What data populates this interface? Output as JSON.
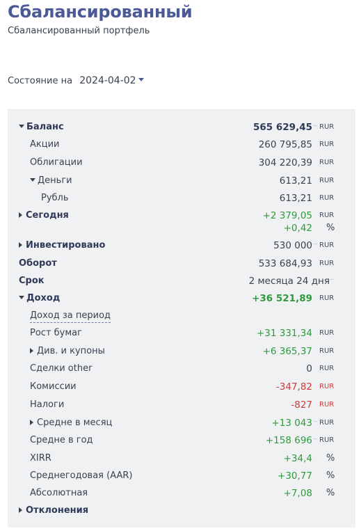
{
  "header": {
    "title": "Сбалансированный",
    "subtitle": "Сбалансированный портфель"
  },
  "state": {
    "label": "Состояние на",
    "date": "2024-04-02"
  },
  "rows": {
    "balance": {
      "label": "Баланс",
      "value": "565 629,45",
      "currency": "RUR"
    },
    "stocks": {
      "label": "Акции",
      "value": "260 795,85",
      "currency": "RUR"
    },
    "bonds": {
      "label": "Облигации",
      "value": "304 220,39",
      "currency": "RUR"
    },
    "money": {
      "label": "Деньги",
      "value": "613,21",
      "currency": "RUR"
    },
    "ruble": {
      "label": "Рубль",
      "value": "613,21",
      "currency": "RUR"
    },
    "today": {
      "label": "Сегодня",
      "value": "+2 379,05",
      "currency": "RUR",
      "percent": "+0,42",
      "percent_unit": "%"
    },
    "invested": {
      "label": "Инвестировано",
      "value": "530 000",
      "currency": "RUR"
    },
    "turnover": {
      "label": "Оборот",
      "value": "533 684,93",
      "currency": "RUR"
    },
    "term": {
      "label": "Срок",
      "value": "2 месяца 24 дня"
    },
    "income": {
      "label": "Доход",
      "value": "+36 521,89",
      "currency": "RUR"
    },
    "income_period": {
      "label": "Доход за период"
    },
    "growth": {
      "label": "Рост бумаг",
      "value": "+31 331,34",
      "currency": "RUR"
    },
    "dividends": {
      "label": "Див. и купоны",
      "value": "+6 365,37",
      "currency": "RUR"
    },
    "deals_other": {
      "label": "Сделки other",
      "value": "0",
      "currency": "RUR"
    },
    "commissions": {
      "label": "Комиссии",
      "value": "-347,82",
      "currency": "RUR"
    },
    "taxes": {
      "label": "Налоги",
      "value": "-827",
      "currency": "RUR"
    },
    "avg_month": {
      "label": "Средне в месяц",
      "value": "+13 043",
      "currency": "RUR"
    },
    "avg_year": {
      "label": "Средне в год",
      "value": "+158 696",
      "currency": "RUR"
    },
    "xirr": {
      "label": "XIRR",
      "value": "+34,4",
      "unit": "%"
    },
    "aar": {
      "label": "Среднегодовая (AAR)",
      "value": "+30,77",
      "unit": "%"
    },
    "absolute": {
      "label": "Абсолютная",
      "value": "+7,08",
      "unit": "%"
    },
    "deviations": {
      "label": "Отклонения"
    }
  },
  "colors": {
    "accent": "#4a5a96",
    "positive": "#2e9a3c",
    "negative": "#cc3b3b",
    "panel_bg": "#f0f1f3"
  },
  "icons": {
    "expanded": "caret-down-icon",
    "collapsed": "caret-right-icon"
  }
}
